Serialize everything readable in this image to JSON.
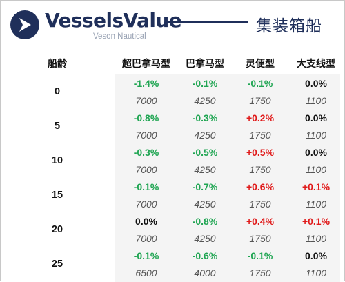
{
  "header": {
    "brand": "VesselsValue",
    "sub_brand": "Veson Nautical",
    "title": "集装箱船",
    "brand_color": "#1f2f5a"
  },
  "table": {
    "age_label": "船龄",
    "columns": [
      "超巴拿马型",
      "巴拿马型",
      "灵便型",
      "大支线型"
    ],
    "rows": [
      {
        "age": "0",
        "changes": [
          "-1.4%",
          "-0.1%",
          "-0.1%",
          "0.0%"
        ],
        "prices": [
          "7000",
          "4250",
          "1750",
          "1100"
        ]
      },
      {
        "age": "5",
        "changes": [
          "-0.8%",
          "-0.3%",
          "+0.2%",
          "0.0%"
        ],
        "prices": [
          "7000",
          "4250",
          "1750",
          "1100"
        ]
      },
      {
        "age": "10",
        "changes": [
          "-0.3%",
          "-0.5%",
          "+0.5%",
          "0.0%"
        ],
        "prices": [
          "7000",
          "4250",
          "1750",
          "1100"
        ]
      },
      {
        "age": "15",
        "changes": [
          "-0.1%",
          "-0.7%",
          "+0.6%",
          "+0.1%"
        ],
        "prices": [
          "7000",
          "4250",
          "1750",
          "1100"
        ]
      },
      {
        "age": "20",
        "changes": [
          "0.0%",
          "-0.8%",
          "+0.4%",
          "+0.1%"
        ],
        "prices": [
          "7000",
          "4250",
          "1750",
          "1100"
        ]
      },
      {
        "age": "25",
        "changes": [
          "-0.1%",
          "-0.6%",
          "-0.1%",
          "0.0%"
        ],
        "prices": [
          "6500",
          "4000",
          "1750",
          "1100"
        ]
      }
    ],
    "colors": {
      "negative": "#1fa552",
      "positive": "#e01a1a",
      "neutral": "#111111",
      "shade": "#f4f4f4"
    }
  }
}
